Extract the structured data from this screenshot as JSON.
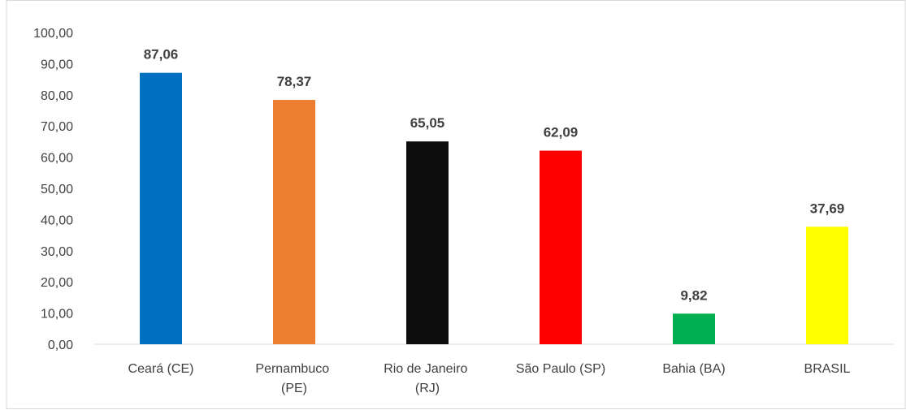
{
  "chart_data": {
    "type": "bar",
    "categories": [
      "Ceará (CE)",
      "Pernambuco (PE)",
      "Rio de Janeiro (RJ)",
      "São Paulo (SP)",
      "Bahia (BA)",
      "BRASIL"
    ],
    "values": [
      87.06,
      78.37,
      65.05,
      62.09,
      9.82,
      37.69
    ],
    "value_labels": [
      "87,06",
      "78,37",
      "65,05",
      "62,09",
      "9,82",
      "37,69"
    ],
    "colors": [
      "#0070c0",
      "#ed7d31",
      "#0d0d0d",
      "#ff0000",
      "#00b050",
      "#ffff00"
    ],
    "ylim": [
      0,
      100
    ],
    "yticks": [
      {
        "value": 0,
        "label": "0,00"
      },
      {
        "value": 10,
        "label": "10,00"
      },
      {
        "value": 20,
        "label": "20,00"
      },
      {
        "value": 30,
        "label": "30,00"
      },
      {
        "value": 40,
        "label": "40,00"
      },
      {
        "value": 50,
        "label": "50,00"
      },
      {
        "value": 60,
        "label": "60,00"
      },
      {
        "value": 70,
        "label": "70,00"
      },
      {
        "value": 80,
        "label": "80,00"
      },
      {
        "value": 90,
        "label": "90,00"
      },
      {
        "value": 100,
        "label": "100,00"
      }
    ],
    "grid": false
  }
}
